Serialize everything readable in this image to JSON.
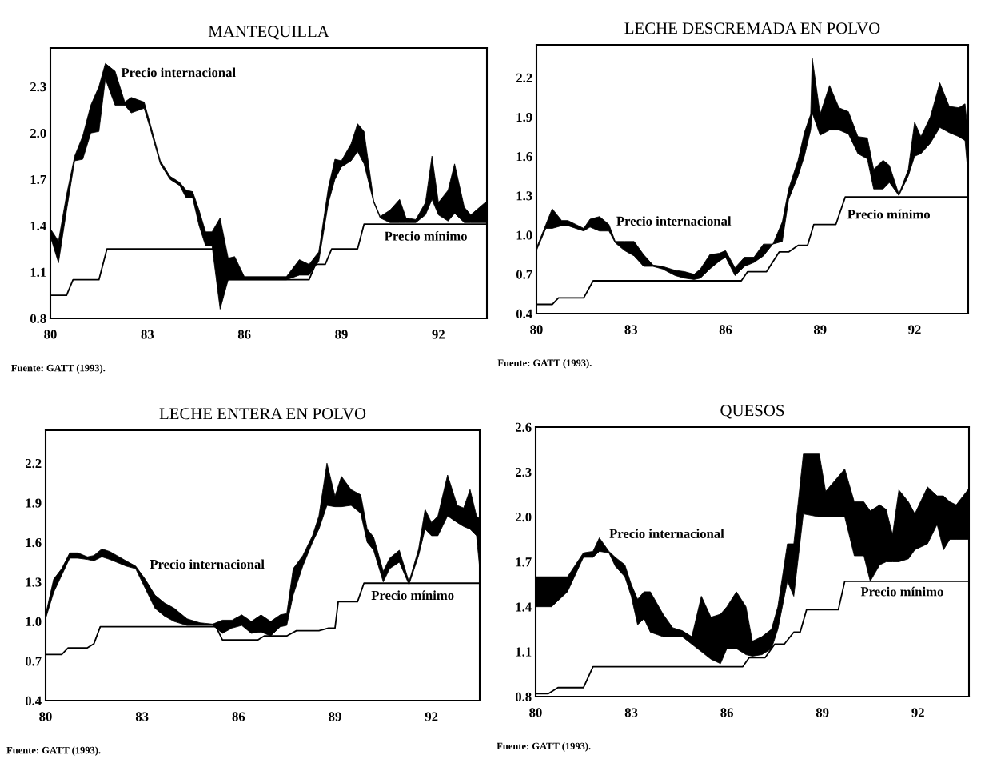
{
  "chart_data": [
    {
      "type": "line",
      "title": "MANTEQUILLA",
      "xlim": [
        80,
        93.5
      ],
      "xticks": [
        80,
        83,
        86,
        89,
        92
      ],
      "ylim": [
        0.8,
        2.55
      ],
      "yticks": [
        {
          "value": 0.8,
          "label": "0.8"
        },
        {
          "value": 1.1,
          "label": "1.1"
        },
        {
          "value": 1.4,
          "label": "1.4"
        },
        {
          "value": 1.7,
          "label": "1.7"
        },
        {
          "value": 2.0,
          "label": "2.0"
        },
        {
          "value": 2.3,
          "label": "2.3"
        }
      ],
      "grid": false,
      "legend": false,
      "series": [
        {
          "name": "Precio internacional",
          "color": "#000000",
          "x": [
            80.0,
            80.25,
            80.5,
            80.75,
            81.0,
            81.25,
            81.5,
            81.7,
            82.0,
            82.3,
            82.5,
            82.9,
            83.1,
            83.4,
            83.7,
            84.0,
            84.2,
            84.4,
            84.6,
            84.8,
            85.0,
            85.25,
            85.5,
            85.7,
            86.0,
            87.3,
            87.7,
            88.0,
            88.3,
            88.6,
            88.8,
            89.0,
            89.3,
            89.5,
            89.7,
            90.0,
            90.2,
            90.5,
            90.8,
            91.0,
            91.3,
            91.6,
            91.8,
            92.0,
            92.3,
            92.5,
            92.8,
            93.0,
            93.5
          ],
          "lower": [
            1.33,
            1.16,
            1.5,
            1.82,
            1.83,
            2.0,
            2.01,
            2.35,
            2.18,
            2.18,
            2.13,
            2.16,
            2.02,
            1.8,
            1.7,
            1.66,
            1.58,
            1.58,
            1.4,
            1.27,
            1.27,
            0.86,
            1.05,
            1.05,
            1.05,
            1.05,
            1.08,
            1.08,
            1.17,
            1.55,
            1.7,
            1.78,
            1.82,
            1.88,
            1.8,
            1.55,
            1.45,
            1.42,
            1.42,
            1.42,
            1.42,
            1.47,
            1.57,
            1.47,
            1.43,
            1.48,
            1.42,
            1.42,
            1.42
          ],
          "values": [
            null,
            null,
            null,
            null,
            null,
            null,
            null,
            null,
            null,
            null,
            null,
            null,
            null,
            null,
            null,
            null,
            null,
            null,
            null,
            null,
            null,
            null,
            null,
            null,
            null,
            null,
            null,
            null,
            null,
            null,
            null,
            null,
            null,
            null,
            null,
            null,
            null,
            null,
            null,
            null,
            null,
            null,
            null,
            null,
            null,
            null,
            null,
            null,
            null
          ],
          "upper": [
            1.38,
            1.3,
            1.6,
            1.85,
            1.98,
            2.18,
            2.3,
            2.45,
            2.4,
            2.2,
            2.23,
            2.2,
            2.05,
            1.82,
            1.72,
            1.68,
            1.63,
            1.62,
            1.5,
            1.36,
            1.36,
            1.45,
            1.19,
            1.2,
            1.07,
            1.07,
            1.18,
            1.15,
            1.23,
            1.65,
            1.83,
            1.82,
            1.93,
            2.06,
            2.01,
            1.56,
            1.46,
            1.5,
            1.57,
            1.45,
            1.44,
            1.55,
            1.85,
            1.55,
            1.63,
            1.8,
            1.52,
            1.47,
            1.56
          ]
        },
        {
          "name": "Precio mínimo",
          "color": "#000000",
          "x": [
            80,
            80.5,
            80.7,
            81.5,
            81.75,
            85.25,
            85.4,
            88.0,
            88.2,
            88.5,
            88.7,
            89.5,
            89.7,
            93.5
          ],
          "values": [
            0.95,
            0.95,
            1.05,
            1.05,
            1.25,
            1.25,
            1.05,
            1.05,
            1.15,
            1.15,
            1.25,
            1.25,
            1.41,
            1.41
          ]
        }
      ],
      "annotations": [
        "Fuente: GATT (1993)."
      ]
    },
    {
      "type": "line",
      "title": "LECHE DESCREMADA EN POLVO",
      "xlim": [
        80,
        93.7
      ],
      "xticks": [
        80,
        83,
        86,
        89,
        92
      ],
      "ylim": [
        0.4,
        2.45
      ],
      "yticks": [
        {
          "value": 0.4,
          "label": "0.4"
        },
        {
          "value": 0.7,
          "label": "0.7"
        },
        {
          "value": 1.0,
          "label": "1.0"
        },
        {
          "value": 1.3,
          "label": "1.3"
        },
        {
          "value": 1.6,
          "label": "1.6"
        },
        {
          "value": 1.9,
          "label": "1.9"
        },
        {
          "value": 2.2,
          "label": "2.2"
        }
      ],
      "grid": false,
      "legend": false,
      "series": [
        {
          "name": "Precio internacional",
          "color": "#000000",
          "x": [
            80.0,
            80.3,
            80.5,
            80.8,
            81.0,
            81.5,
            81.7,
            82.0,
            82.3,
            82.5,
            82.8,
            83.1,
            83.4,
            83.7,
            84.0,
            84.4,
            84.7,
            85.0,
            85.2,
            85.5,
            85.8,
            86.0,
            86.3,
            86.6,
            86.9,
            87.2,
            87.5,
            87.8,
            88.0,
            88.3,
            88.5,
            88.7,
            88.75,
            89.0,
            89.3,
            89.6,
            89.9,
            90.2,
            90.5,
            90.7,
            91.0,
            91.2,
            91.5,
            91.8,
            92.0,
            92.2,
            92.5,
            92.8,
            93.1,
            93.4,
            93.6,
            93.7
          ],
          "lower": [
            0.88,
            1.05,
            1.05,
            1.07,
            1.07,
            1.03,
            1.06,
            1.03,
            1.03,
            0.94,
            0.88,
            0.84,
            0.76,
            0.76,
            0.74,
            0.69,
            0.67,
            0.66,
            0.67,
            0.74,
            0.8,
            0.83,
            0.69,
            0.76,
            0.79,
            0.84,
            0.93,
            0.95,
            1.27,
            1.45,
            1.6,
            1.8,
            1.93,
            1.76,
            1.8,
            1.8,
            1.77,
            1.62,
            1.58,
            1.35,
            1.35,
            1.4,
            1.3,
            1.45,
            1.6,
            1.62,
            1.7,
            1.82,
            1.78,
            1.75,
            1.72,
            1.45
          ],
          "values": [
            null,
            null,
            null,
            null,
            null,
            null,
            null,
            null,
            null,
            null,
            null,
            null,
            null,
            null,
            null,
            null,
            null,
            null,
            null,
            null,
            null,
            null,
            null,
            null,
            null,
            null,
            null,
            null,
            null,
            null,
            null,
            null,
            null,
            null,
            null,
            null,
            null,
            null,
            null,
            null,
            null,
            null,
            null,
            null,
            null,
            null,
            null,
            null,
            null,
            null,
            null,
            null
          ],
          "upper": [
            0.9,
            1.08,
            1.2,
            1.11,
            1.11,
            1.05,
            1.12,
            1.14,
            1.08,
            0.95,
            0.95,
            0.95,
            0.85,
            0.77,
            0.76,
            0.73,
            0.72,
            0.7,
            0.74,
            0.85,
            0.86,
            0.88,
            0.75,
            0.83,
            0.83,
            0.93,
            0.93,
            1.1,
            1.35,
            1.57,
            1.78,
            1.92,
            2.35,
            1.92,
            2.14,
            1.97,
            1.94,
            1.75,
            1.74,
            1.5,
            1.57,
            1.53,
            1.31,
            1.5,
            1.86,
            1.75,
            1.9,
            2.16,
            1.98,
            1.97,
            2.0,
            1.75
          ]
        },
        {
          "name": "Precio mínimo",
          "color": "#000000",
          "x": [
            80,
            80.5,
            80.7,
            81.5,
            81.8,
            86.5,
            86.7,
            87.3,
            87.7,
            88.0,
            88.3,
            88.6,
            88.8,
            89.5,
            89.8,
            93.7
          ],
          "values": [
            0.47,
            0.47,
            0.52,
            0.52,
            0.65,
            0.65,
            0.72,
            0.72,
            0.87,
            0.87,
            0.92,
            0.92,
            1.08,
            1.08,
            1.29,
            1.29
          ]
        }
      ],
      "annotations": [
        "Fuente: GATT (1993)."
      ]
    },
    {
      "type": "line",
      "title": "LECHE ENTERA EN POLVO",
      "xlim": [
        80,
        93.5
      ],
      "xticks": [
        80,
        83,
        86,
        89,
        92
      ],
      "ylim": [
        0.4,
        2.45
      ],
      "yticks": [
        {
          "value": 0.4,
          "label": "0.4"
        },
        {
          "value": 0.7,
          "label": "0.7"
        },
        {
          "value": 1.0,
          "label": "1.0"
        },
        {
          "value": 1.3,
          "label": "1.3"
        },
        {
          "value": 1.6,
          "label": "1.6"
        },
        {
          "value": 1.9,
          "label": "1.9"
        },
        {
          "value": 2.2,
          "label": "2.2"
        }
      ],
      "grid": false,
      "legend": false,
      "series": [
        {
          "name": "Precio internacional",
          "color": "#000000",
          "x": [
            80.0,
            80.25,
            80.5,
            80.75,
            81.0,
            81.3,
            81.5,
            81.75,
            82.0,
            82.5,
            82.8,
            83.1,
            83.4,
            83.7,
            84.0,
            84.4,
            84.8,
            85.2,
            85.5,
            85.8,
            86.1,
            86.4,
            86.7,
            87.0,
            87.3,
            87.5,
            87.7,
            88.0,
            88.3,
            88.5,
            88.75,
            89.0,
            89.2,
            89.5,
            89.8,
            90.0,
            90.2,
            90.5,
            90.7,
            91.0,
            91.3,
            91.6,
            91.8,
            92.0,
            92.2,
            92.5,
            92.8,
            93.0,
            93.2,
            93.4,
            93.5
          ],
          "lower": [
            1.02,
            1.22,
            1.35,
            1.48,
            1.48,
            1.47,
            1.46,
            1.49,
            1.47,
            1.42,
            1.4,
            1.25,
            1.1,
            1.04,
            1.0,
            0.97,
            0.97,
            0.97,
            0.91,
            0.95,
            0.97,
            0.91,
            0.92,
            0.89,
            0.96,
            0.97,
            1.2,
            1.42,
            1.6,
            1.7,
            1.88,
            1.87,
            1.87,
            1.88,
            1.82,
            1.6,
            1.54,
            1.3,
            1.4,
            1.45,
            1.28,
            1.5,
            1.7,
            1.65,
            1.65,
            1.8,
            1.75,
            1.72,
            1.7,
            1.65,
            1.4
          ],
          "values": [
            null,
            null,
            null,
            null,
            null,
            null,
            null,
            null,
            null,
            null,
            null,
            null,
            null,
            null,
            null,
            null,
            null,
            null,
            null,
            null,
            null,
            null,
            null,
            null,
            null,
            null,
            null,
            null,
            null,
            null,
            null,
            null,
            null,
            null,
            null,
            null,
            null,
            null,
            null,
            null,
            null,
            null,
            null,
            null,
            null,
            null,
            null,
            null,
            null,
            null,
            null
          ],
          "upper": [
            1.05,
            1.32,
            1.4,
            1.52,
            1.52,
            1.49,
            1.5,
            1.55,
            1.53,
            1.46,
            1.42,
            1.32,
            1.2,
            1.14,
            1.1,
            1.02,
            0.99,
            0.98,
            1.01,
            1.01,
            1.05,
            1.0,
            1.05,
            1.0,
            1.05,
            1.06,
            1.4,
            1.5,
            1.65,
            1.8,
            2.2,
            1.95,
            2.1,
            2.0,
            1.96,
            1.7,
            1.64,
            1.38,
            1.48,
            1.54,
            1.3,
            1.55,
            1.85,
            1.75,
            1.8,
            2.11,
            1.88,
            1.86,
            2.0,
            1.8,
            1.78
          ]
        },
        {
          "name": "Precio mínimo",
          "color": "#000000",
          "x": [
            80,
            80.5,
            80.7,
            81.3,
            81.5,
            81.7,
            85.3,
            85.5,
            86.6,
            86.8,
            87.5,
            87.8,
            88.5,
            88.8,
            89.0,
            89.1,
            89.7,
            89.9,
            93.5
          ],
          "values": [
            0.75,
            0.75,
            0.8,
            0.8,
            0.83,
            0.96,
            0.96,
            0.86,
            0.86,
            0.89,
            0.89,
            0.93,
            0.93,
            0.95,
            0.95,
            1.15,
            1.15,
            1.29,
            1.29
          ]
        }
      ],
      "annotations": [
        "Fuente: GATT (1993)."
      ]
    },
    {
      "type": "line",
      "title": "QUESOS",
      "xlim": [
        80,
        93.6
      ],
      "xticks": [
        80,
        83,
        86,
        89,
        92
      ],
      "ylim": [
        0.8,
        2.6
      ],
      "yticks": [
        {
          "value": 0.8,
          "label": "0.8"
        },
        {
          "value": 1.1,
          "label": "1.1"
        },
        {
          "value": 1.4,
          "label": "1.4"
        },
        {
          "value": 1.7,
          "label": "1.7"
        },
        {
          "value": 2.0,
          "label": "2.0"
        },
        {
          "value": 2.3,
          "label": "2.3"
        },
        {
          "value": 2.6,
          "label": "2.6"
        }
      ],
      "grid": false,
      "legend": false,
      "series": [
        {
          "name": "Precio internacional",
          "color": "#000000",
          "x": [
            80.0,
            80.5,
            81.0,
            81.5,
            81.8,
            82.0,
            82.3,
            82.5,
            82.8,
            83.0,
            83.2,
            83.4,
            83.6,
            84.0,
            84.3,
            84.6,
            84.9,
            85.2,
            85.5,
            85.8,
            86.0,
            86.3,
            86.6,
            86.8,
            87.1,
            87.4,
            87.6,
            87.9,
            88.1,
            88.4,
            88.9,
            89.1,
            89.7,
            90.0,
            90.3,
            90.5,
            90.8,
            91.0,
            91.2,
            91.4,
            91.7,
            91.9,
            92.3,
            92.6,
            92.8,
            93.0,
            93.2,
            93.6
          ],
          "lower": [
            1.4,
            1.4,
            1.5,
            1.73,
            1.73,
            1.77,
            1.76,
            1.67,
            1.6,
            1.47,
            1.28,
            1.32,
            1.23,
            1.2,
            1.2,
            1.2,
            1.15,
            1.1,
            1.05,
            1.02,
            1.12,
            1.12,
            1.08,
            1.07,
            1.08,
            1.12,
            1.25,
            1.57,
            1.47,
            2.02,
            2.0,
            2.0,
            2.0,
            1.74,
            1.74,
            1.57,
            1.68,
            1.7,
            1.7,
            1.7,
            1.72,
            1.78,
            1.82,
            1.95,
            1.78,
            1.85,
            1.85,
            1.85
          ],
          "values": [
            null,
            null,
            null,
            null,
            null,
            null,
            null,
            null,
            null,
            null,
            null,
            null,
            null,
            null,
            null,
            null,
            null,
            null,
            null,
            null,
            null,
            null,
            null,
            null,
            null,
            null,
            null,
            null,
            null,
            null,
            null,
            null,
            null,
            null,
            null,
            null,
            null,
            null,
            null,
            null,
            null,
            null,
            null,
            null,
            null,
            null,
            null,
            null
          ],
          "upper": [
            1.6,
            1.6,
            1.6,
            1.76,
            1.77,
            1.86,
            1.77,
            1.73,
            1.68,
            1.55,
            1.45,
            1.5,
            1.5,
            1.35,
            1.26,
            1.24,
            1.2,
            1.47,
            1.33,
            1.35,
            1.4,
            1.5,
            1.4,
            1.17,
            1.2,
            1.25,
            1.4,
            1.82,
            1.82,
            2.42,
            2.42,
            2.17,
            2.32,
            2.1,
            2.1,
            2.04,
            2.08,
            2.05,
            1.88,
            2.18,
            2.1,
            2.02,
            2.2,
            2.14,
            2.14,
            2.1,
            2.08,
            2.19
          ]
        },
        {
          "name": "Precio mínimo",
          "color": "#000000",
          "x": [
            80,
            80.4,
            80.7,
            81.5,
            81.8,
            86.5,
            86.7,
            87.2,
            87.5,
            87.8,
            88.1,
            88.3,
            88.5,
            89.5,
            89.7,
            93.6
          ],
          "values": [
            0.82,
            0.82,
            0.86,
            0.86,
            1.0,
            1.0,
            1.06,
            1.06,
            1.15,
            1.15,
            1.23,
            1.23,
            1.38,
            1.38,
            1.57,
            1.57
          ]
        }
      ],
      "annotations": [
        "Fuente: GATT (1993)."
      ]
    }
  ]
}
